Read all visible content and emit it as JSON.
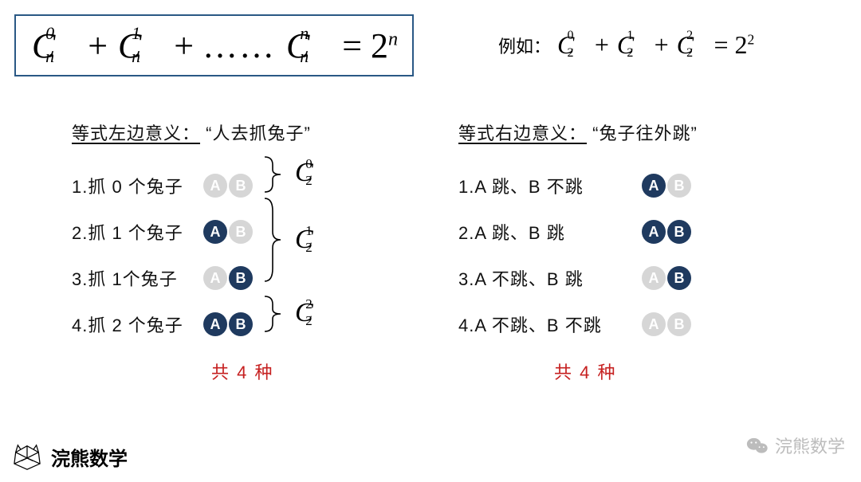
{
  "colors": {
    "box_border": "#2a5885",
    "badge_on": "#1f3a5f",
    "badge_off": "#d6d6d6",
    "total": "#c62020",
    "watermark": "#bcbcbc"
  },
  "formula": {
    "terms": [
      "C_n^0",
      "+",
      "C_n^1",
      "+",
      "……",
      "C_n^n",
      "=",
      "2^n"
    ],
    "display_html": true
  },
  "example": {
    "prefix": "例如：",
    "terms": [
      "C_2^0",
      "+",
      "C_2^1",
      "+",
      "C_2^2",
      "=",
      "2^2"
    ]
  },
  "left": {
    "title_u": "等式左边意义：",
    "title_q": "“人去抓兔子”",
    "rows": [
      {
        "label": "1.抓 0 个兔子",
        "A": false,
        "B": false
      },
      {
        "label": "2.抓 1 个兔子",
        "A": true,
        "B": false
      },
      {
        "label": "3.抓 1个兔子",
        "A": false,
        "B": true
      },
      {
        "label": "4.抓 2 个兔子",
        "A": true,
        "B": true
      }
    ],
    "groups": [
      {
        "label_base": "C",
        "sub": "2",
        "sup": "0",
        "rows": [
          0
        ]
      },
      {
        "label_base": "C",
        "sub": "2",
        "sup": "1",
        "rows": [
          1,
          2
        ]
      },
      {
        "label_base": "C",
        "sub": "2",
        "sup": "2",
        "rows": [
          3
        ]
      }
    ],
    "total": "共 4 种"
  },
  "right": {
    "title_u": "等式右边意义：",
    "title_q": "“兔子往外跳”",
    "rows": [
      {
        "label": "1.A 跳、B 不跳",
        "A": true,
        "B": false
      },
      {
        "label": "2.A 跳、B 跳",
        "A": true,
        "B": true
      },
      {
        "label": "3.A 不跳、B 跳",
        "A": false,
        "B": true
      },
      {
        "label": "4.A 不跳、B 不跳",
        "A": false,
        "B": false
      }
    ],
    "total": "共 4 种"
  },
  "footer": {
    "brand": "浣熊数学",
    "watermark": "浣熊数学"
  },
  "badge_letters": {
    "A": "A",
    "B": "B"
  }
}
